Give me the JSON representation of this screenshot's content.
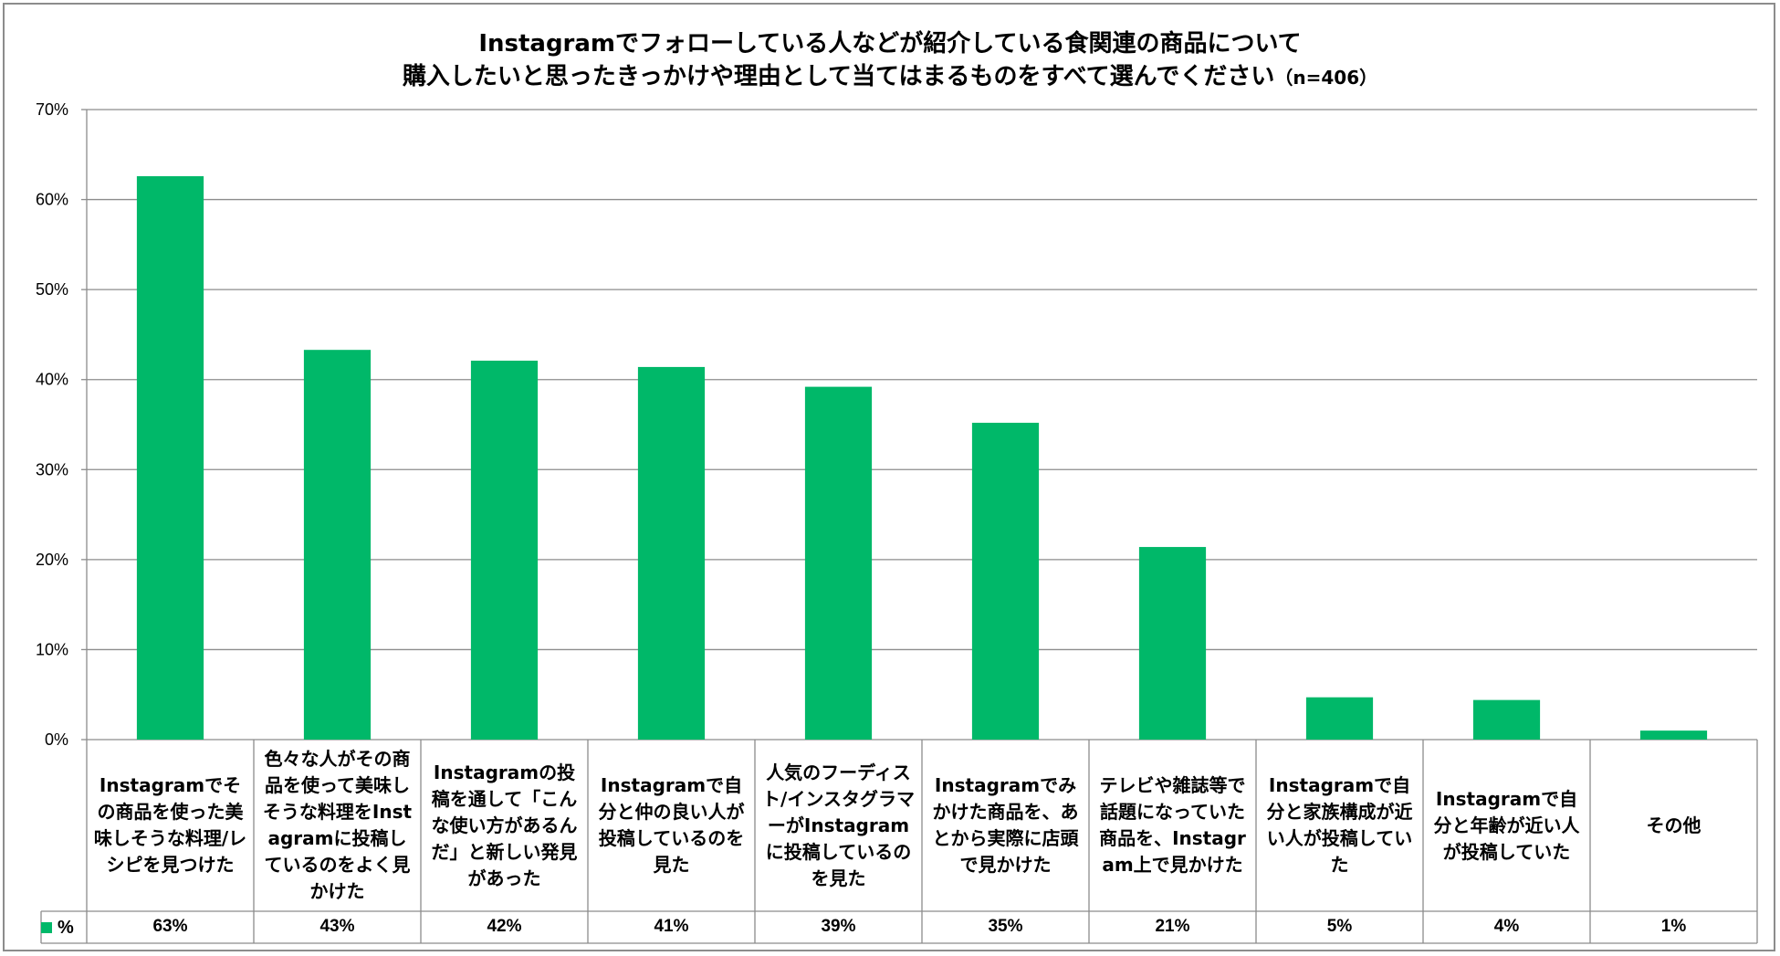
{
  "chart_data": {
    "type": "bar",
    "title_line1": "Instagramでフォローしている人などが紹介している食関連の商品について",
    "title_line2": "購入したいと思ったきっかけや理由として当てはまるものをすべて選んでください",
    "title_n": "（n=406）",
    "legend_label": "%",
    "ylim": [
      0,
      70
    ],
    "yticks": [
      "0%",
      "10%",
      "20%",
      "30%",
      "40%",
      "50%",
      "60%",
      "70%"
    ],
    "categories": [
      "Instagramでその商品を使った美味しそうな料理/レシピを見つけた",
      "色々な人がその商品を使って美味しそうな料理をInstagramに投稿しているのをよく見かけた",
      "Instagramの投稿を通して「こんな使い方があるんだ」と新しい発見があった",
      "Instagramで自分と仲の良い人が投稿しているのを見た",
      "人気のフーディスト/インスタグラマーがInstagramに投稿しているのを見た",
      "Instagramでみかけた商品を、あとから実際に店頭で見かけた",
      "テレビや雑誌等で話題になっていた商品を、Instagram上で見かけた",
      "Instagramで自分と家族構成が近い人が投稿していた",
      "Instagramで自分と年齢が近い人が投稿していた",
      "その他"
    ],
    "values": [
      62.6,
      43.3,
      42.1,
      41.4,
      39.2,
      35.2,
      21.4,
      4.7,
      4.4,
      1.0
    ],
    "value_labels": [
      "63%",
      "43%",
      "42%",
      "41%",
      "39%",
      "35%",
      "21%",
      "5%",
      "4%",
      "1%"
    ],
    "bar_color": "#00b869"
  }
}
